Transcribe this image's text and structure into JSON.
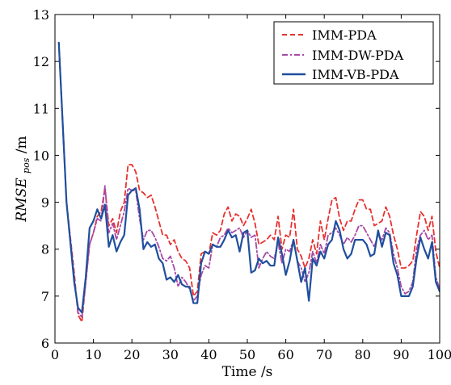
{
  "chart_data": {
    "type": "line",
    "title": "",
    "xlabel": "Time /s",
    "ylabel": {
      "main": "RMSE",
      "sub": "pos",
      "unit": " /m"
    },
    "xlim": [
      0,
      100
    ],
    "ylim": [
      6,
      13
    ],
    "xticks": [
      0,
      10,
      20,
      30,
      40,
      50,
      60,
      70,
      80,
      90,
      100
    ],
    "yticks": [
      6,
      7,
      8,
      9,
      10,
      11,
      12,
      13
    ],
    "grid": false,
    "legend_position": "top-right",
    "series": [
      {
        "name": "IMM-PDA",
        "color": "#e8312f",
        "style": "dashed",
        "points": [
          [
            1,
            12.4
          ],
          [
            3,
            9.0
          ],
          [
            5,
            7.5
          ],
          [
            6,
            6.6
          ],
          [
            7,
            6.45
          ],
          [
            8,
            7.3
          ],
          [
            9,
            8.1
          ],
          [
            10,
            8.35
          ],
          [
            11,
            8.7
          ],
          [
            12,
            8.8
          ],
          [
            13,
            9.3
          ],
          [
            14,
            8.5
          ],
          [
            15,
            8.65
          ],
          [
            16,
            8.35
          ],
          [
            17,
            8.8
          ],
          [
            18,
            9.0
          ],
          [
            19,
            9.8
          ],
          [
            20,
            9.8
          ],
          [
            21,
            9.65
          ],
          [
            22,
            9.25
          ],
          [
            23,
            9.2
          ],
          [
            24,
            9.1
          ],
          [
            25,
            9.15
          ],
          [
            26,
            8.9
          ],
          [
            27,
            8.6
          ],
          [
            28,
            8.3
          ],
          [
            29,
            8.3
          ],
          [
            30,
            8.1
          ],
          [
            31,
            8.2
          ],
          [
            32,
            7.95
          ],
          [
            33,
            7.8
          ],
          [
            34,
            7.75
          ],
          [
            35,
            7.6
          ],
          [
            36,
            7.0
          ],
          [
            37,
            7.1
          ],
          [
            38,
            7.9
          ],
          [
            39,
            7.95
          ],
          [
            40,
            7.9
          ],
          [
            41,
            8.35
          ],
          [
            42,
            8.3
          ],
          [
            43,
            8.4
          ],
          [
            44,
            8.75
          ],
          [
            45,
            8.9
          ],
          [
            46,
            8.6
          ],
          [
            47,
            8.75
          ],
          [
            48,
            8.7
          ],
          [
            49,
            8.5
          ],
          [
            50,
            8.65
          ],
          [
            51,
            8.85
          ],
          [
            52,
            8.55
          ],
          [
            53,
            8.1
          ],
          [
            54,
            8.15
          ],
          [
            55,
            8.2
          ],
          [
            56,
            8.3
          ],
          [
            57,
            8.2
          ],
          [
            58,
            8.7
          ],
          [
            59,
            8.0
          ],
          [
            60,
            8.3
          ],
          [
            61,
            8.25
          ],
          [
            62,
            8.85
          ],
          [
            63,
            8.0
          ],
          [
            64,
            7.85
          ],
          [
            65,
            7.6
          ],
          [
            66,
            7.8
          ],
          [
            67,
            8.2
          ],
          [
            68,
            7.9
          ],
          [
            69,
            8.6
          ],
          [
            70,
            8.2
          ],
          [
            71,
            8.65
          ],
          [
            72,
            9.05
          ],
          [
            73,
            9.1
          ],
          [
            74,
            8.65
          ],
          [
            75,
            8.4
          ],
          [
            76,
            8.6
          ],
          [
            77,
            8.6
          ],
          [
            78,
            8.85
          ],
          [
            79,
            9.05
          ],
          [
            80,
            9.05
          ],
          [
            81,
            8.85
          ],
          [
            82,
            8.85
          ],
          [
            83,
            8.5
          ],
          [
            84,
            8.55
          ],
          [
            85,
            8.6
          ],
          [
            86,
            8.9
          ],
          [
            87,
            8.7
          ],
          [
            88,
            8.3
          ],
          [
            89,
            8.0
          ],
          [
            90,
            7.6
          ],
          [
            91,
            7.6
          ],
          [
            92,
            7.65
          ],
          [
            93,
            7.75
          ],
          [
            94,
            8.3
          ],
          [
            95,
            8.8
          ],
          [
            96,
            8.7
          ],
          [
            97,
            8.4
          ],
          [
            98,
            8.7
          ],
          [
            99,
            7.95
          ],
          [
            100,
            7.6
          ]
        ]
      },
      {
        "name": "IMM-DW-PDA",
        "color": "#a64aa8",
        "style": "dashdot",
        "points": [
          [
            1,
            12.4
          ],
          [
            3,
            9.0
          ],
          [
            5,
            7.4
          ],
          [
            6,
            6.65
          ],
          [
            7,
            6.55
          ],
          [
            8,
            7.3
          ],
          [
            9,
            8.1
          ],
          [
            10,
            8.35
          ],
          [
            11,
            8.65
          ],
          [
            12,
            8.6
          ],
          [
            13,
            9.35
          ],
          [
            14,
            8.35
          ],
          [
            15,
            8.55
          ],
          [
            16,
            8.2
          ],
          [
            17,
            8.5
          ],
          [
            18,
            8.8
          ],
          [
            19,
            9.3
          ],
          [
            20,
            9.25
          ],
          [
            21,
            9.25
          ],
          [
            22,
            8.65
          ],
          [
            23,
            8.2
          ],
          [
            24,
            8.4
          ],
          [
            25,
            8.4
          ],
          [
            26,
            8.25
          ],
          [
            27,
            8.05
          ],
          [
            28,
            7.8
          ],
          [
            29,
            7.75
          ],
          [
            30,
            7.85
          ],
          [
            31,
            7.6
          ],
          [
            32,
            7.2
          ],
          [
            33,
            7.4
          ],
          [
            34,
            7.3
          ],
          [
            35,
            7.15
          ],
          [
            36,
            6.9
          ],
          [
            37,
            7.0
          ],
          [
            38,
            7.45
          ],
          [
            39,
            7.65
          ],
          [
            40,
            7.6
          ],
          [
            41,
            8.1
          ],
          [
            42,
            8.05
          ],
          [
            43,
            8.25
          ],
          [
            44,
            8.3
          ],
          [
            45,
            8.45
          ],
          [
            46,
            8.35
          ],
          [
            47,
            8.4
          ],
          [
            48,
            8.45
          ],
          [
            49,
            8.25
          ],
          [
            50,
            8.4
          ],
          [
            51,
            8.25
          ],
          [
            52,
            8.3
          ],
          [
            53,
            7.6
          ],
          [
            54,
            7.8
          ],
          [
            55,
            7.95
          ],
          [
            56,
            7.85
          ],
          [
            57,
            7.8
          ],
          [
            58,
            8.15
          ],
          [
            59,
            7.7
          ],
          [
            60,
            8.0
          ],
          [
            61,
            7.95
          ],
          [
            62,
            8.2
          ],
          [
            63,
            7.75
          ],
          [
            64,
            7.6
          ],
          [
            65,
            7.3
          ],
          [
            66,
            7.5
          ],
          [
            67,
            7.95
          ],
          [
            68,
            7.7
          ],
          [
            69,
            8.1
          ],
          [
            70,
            7.9
          ],
          [
            71,
            8.3
          ],
          [
            72,
            8.35
          ],
          [
            73,
            8.45
          ],
          [
            74,
            8.3
          ],
          [
            75,
            8.1
          ],
          [
            76,
            8.25
          ],
          [
            77,
            8.15
          ],
          [
            78,
            8.3
          ],
          [
            79,
            8.5
          ],
          [
            80,
            8.5
          ],
          [
            81,
            8.35
          ],
          [
            82,
            8.2
          ],
          [
            83,
            8.05
          ],
          [
            84,
            8.3
          ],
          [
            85,
            8.2
          ],
          [
            86,
            8.45
          ],
          [
            87,
            8.35
          ],
          [
            88,
            7.9
          ],
          [
            89,
            7.6
          ],
          [
            90,
            7.2
          ],
          [
            91,
            7.05
          ],
          [
            92,
            7.1
          ],
          [
            93,
            7.3
          ],
          [
            94,
            8.0
          ],
          [
            95,
            8.3
          ],
          [
            96,
            8.4
          ],
          [
            97,
            8.2
          ],
          [
            98,
            8.3
          ],
          [
            99,
            7.4
          ],
          [
            100,
            7.15
          ]
        ]
      },
      {
        "name": "IMM-VB-PDA",
        "color": "#1f4f9e",
        "style": "solid",
        "points": [
          [
            1,
            12.4
          ],
          [
            3,
            9.0
          ],
          [
            5,
            7.3
          ],
          [
            6,
            6.75
          ],
          [
            7,
            6.65
          ],
          [
            8,
            7.4
          ],
          [
            9,
            8.45
          ],
          [
            10,
            8.6
          ],
          [
            11,
            8.85
          ],
          [
            12,
            8.65
          ],
          [
            13,
            8.95
          ],
          [
            14,
            8.05
          ],
          [
            15,
            8.3
          ],
          [
            16,
            7.95
          ],
          [
            17,
            8.15
          ],
          [
            18,
            8.3
          ],
          [
            19,
            9.15
          ],
          [
            20,
            9.25
          ],
          [
            21,
            9.3
          ],
          [
            22,
            8.85
          ],
          [
            23,
            8.0
          ],
          [
            24,
            8.15
          ],
          [
            25,
            8.05
          ],
          [
            26,
            8.1
          ],
          [
            27,
            7.8
          ],
          [
            28,
            7.7
          ],
          [
            29,
            7.35
          ],
          [
            30,
            7.4
          ],
          [
            31,
            7.3
          ],
          [
            32,
            7.45
          ],
          [
            33,
            7.25
          ],
          [
            34,
            7.2
          ],
          [
            35,
            7.2
          ],
          [
            36,
            6.85
          ],
          [
            37,
            6.85
          ],
          [
            38,
            7.7
          ],
          [
            39,
            7.95
          ],
          [
            40,
            7.9
          ],
          [
            41,
            8.1
          ],
          [
            42,
            8.05
          ],
          [
            43,
            8.05
          ],
          [
            44,
            8.2
          ],
          [
            45,
            8.4
          ],
          [
            46,
            8.25
          ],
          [
            47,
            8.3
          ],
          [
            48,
            7.95
          ],
          [
            49,
            8.35
          ],
          [
            50,
            8.4
          ],
          [
            51,
            7.5
          ],
          [
            52,
            7.55
          ],
          [
            53,
            7.8
          ],
          [
            54,
            7.7
          ],
          [
            55,
            7.75
          ],
          [
            56,
            7.65
          ],
          [
            57,
            7.65
          ],
          [
            58,
            8.25
          ],
          [
            59,
            7.9
          ],
          [
            60,
            7.45
          ],
          [
            61,
            7.75
          ],
          [
            62,
            8.2
          ],
          [
            63,
            7.75
          ],
          [
            64,
            7.3
          ],
          [
            65,
            7.6
          ],
          [
            66,
            6.9
          ],
          [
            67,
            7.8
          ],
          [
            68,
            7.65
          ],
          [
            69,
            7.95
          ],
          [
            70,
            7.8
          ],
          [
            71,
            8.1
          ],
          [
            72,
            8.2
          ],
          [
            73,
            8.6
          ],
          [
            74,
            8.4
          ],
          [
            75,
            8.0
          ],
          [
            76,
            7.8
          ],
          [
            77,
            7.9
          ],
          [
            78,
            8.2
          ],
          [
            79,
            8.2
          ],
          [
            80,
            8.2
          ],
          [
            81,
            8.1
          ],
          [
            82,
            7.85
          ],
          [
            83,
            7.9
          ],
          [
            84,
            8.4
          ],
          [
            85,
            8.05
          ],
          [
            86,
            8.35
          ],
          [
            87,
            8.3
          ],
          [
            88,
            7.7
          ],
          [
            89,
            7.45
          ],
          [
            90,
            7.0
          ],
          [
            91,
            7.0
          ],
          [
            92,
            7.0
          ],
          [
            93,
            7.2
          ],
          [
            94,
            7.8
          ],
          [
            95,
            8.25
          ],
          [
            96,
            8.0
          ],
          [
            97,
            7.8
          ],
          [
            98,
            8.15
          ],
          [
            99,
            7.3
          ],
          [
            100,
            7.1
          ]
        ]
      }
    ]
  }
}
